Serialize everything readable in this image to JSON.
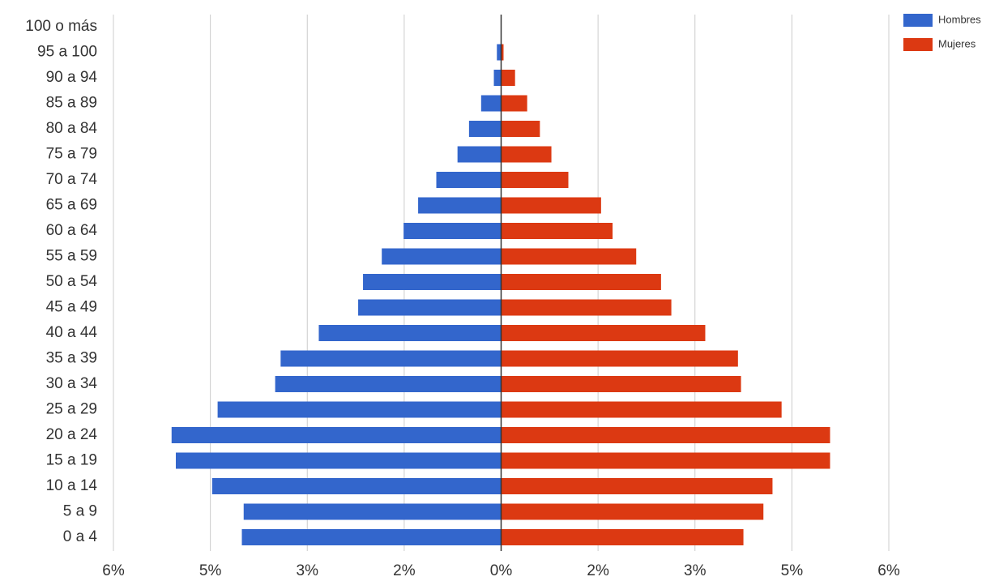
{
  "chart_data": {
    "type": "pyramid",
    "categories": [
      "100 o más",
      "95 a 100",
      "90 a 94",
      "85 a 89",
      "80 a 84",
      "75 a 79",
      "70 a 74",
      "65 a 69",
      "60 a 64",
      "55 a 59",
      "50 a 54",
      "45 a 49",
      "40 a 44",
      "35 a 39",
      "30 a 34",
      "25 a 29",
      "20 a 24",
      "15 a 19",
      "10 a 14",
      "5 a 9",
      "0 a 4"
    ],
    "series": [
      {
        "name": "Hombres",
        "color": "#3366cc",
        "values": [
          0,
          -0.07,
          -0.12,
          -0.33,
          -0.53,
          -0.72,
          -1.07,
          -1.37,
          -1.61,
          -1.97,
          -2.28,
          -2.36,
          -3.01,
          -3.64,
          -3.73,
          -4.68,
          -5.44,
          -5.37,
          -4.77,
          -4.25,
          -4.28
        ]
      },
      {
        "name": "Mujeres",
        "color": "#dc3912",
        "values": [
          0,
          0.04,
          0.23,
          0.43,
          0.64,
          0.83,
          1.11,
          1.65,
          1.84,
          2.23,
          2.64,
          2.81,
          3.37,
          3.91,
          3.96,
          4.63,
          5.43,
          5.43,
          4.48,
          4.33,
          4.0
        ]
      }
    ],
    "xlim": [
      -6.4,
      6.4
    ],
    "xticks": [
      {
        "value": -6.4,
        "label": "6%"
      },
      {
        "value": -4.8,
        "label": "5%"
      },
      {
        "value": -3.2,
        "label": "3%"
      },
      {
        "value": -1.6,
        "label": "2%"
      },
      {
        "value": 0,
        "label": "0%"
      },
      {
        "value": 1.6,
        "label": "2%"
      },
      {
        "value": 3.2,
        "label": "3%"
      },
      {
        "value": 4.8,
        "label": "5%"
      },
      {
        "value": 6.4,
        "label": "6%"
      }
    ],
    "grid": true,
    "legend": "top-right"
  }
}
